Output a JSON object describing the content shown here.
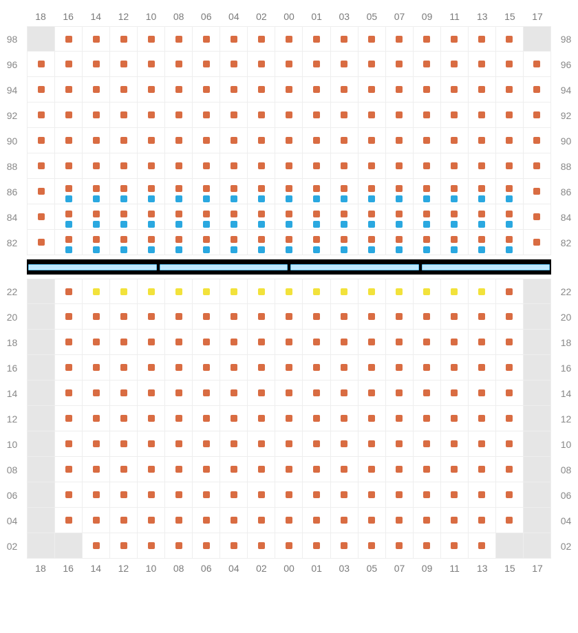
{
  "colors": {
    "seat_default": "#d96c42",
    "seat_blue": "#2aa8e0",
    "seat_yellow": "#f2e23b",
    "blank_bg": "#e6e6e6",
    "cell_bg": "#ffffff",
    "grid_line": "#eeeeee",
    "label_color": "#888888",
    "stage_bg": "#000000",
    "stage_seg_fill": "#bfe8ff",
    "stage_seg_border": "#5cbdf0"
  },
  "columns": [
    "18",
    "16",
    "14",
    "12",
    "10",
    "08",
    "06",
    "04",
    "02",
    "00",
    "01",
    "03",
    "05",
    "07",
    "09",
    "11",
    "13",
    "15",
    "17"
  ],
  "stage_segments": 4,
  "upper": {
    "rows": [
      {
        "label": "98",
        "cells": [
          {
            "t": "blank"
          },
          {
            "t": "s"
          },
          {
            "t": "s"
          },
          {
            "t": "s"
          },
          {
            "t": "s"
          },
          {
            "t": "s"
          },
          {
            "t": "s"
          },
          {
            "t": "s"
          },
          {
            "t": "s"
          },
          {
            "t": "s"
          },
          {
            "t": "s"
          },
          {
            "t": "s"
          },
          {
            "t": "s"
          },
          {
            "t": "s"
          },
          {
            "t": "s"
          },
          {
            "t": "s"
          },
          {
            "t": "s"
          },
          {
            "t": "s"
          },
          {
            "t": "blank"
          }
        ]
      },
      {
        "label": "96",
        "cells": [
          {
            "t": "s"
          },
          {
            "t": "s"
          },
          {
            "t": "s"
          },
          {
            "t": "s"
          },
          {
            "t": "s"
          },
          {
            "t": "s"
          },
          {
            "t": "s"
          },
          {
            "t": "s"
          },
          {
            "t": "s"
          },
          {
            "t": "s"
          },
          {
            "t": "s"
          },
          {
            "t": "s"
          },
          {
            "t": "s"
          },
          {
            "t": "s"
          },
          {
            "t": "s"
          },
          {
            "t": "s"
          },
          {
            "t": "s"
          },
          {
            "t": "s"
          },
          {
            "t": "s"
          }
        ]
      },
      {
        "label": "94",
        "cells": [
          {
            "t": "s"
          },
          {
            "t": "s"
          },
          {
            "t": "s"
          },
          {
            "t": "s"
          },
          {
            "t": "s"
          },
          {
            "t": "s"
          },
          {
            "t": "s"
          },
          {
            "t": "s"
          },
          {
            "t": "s"
          },
          {
            "t": "s"
          },
          {
            "t": "s"
          },
          {
            "t": "s"
          },
          {
            "t": "s"
          },
          {
            "t": "s"
          },
          {
            "t": "s"
          },
          {
            "t": "s"
          },
          {
            "t": "s"
          },
          {
            "t": "s"
          },
          {
            "t": "s"
          }
        ]
      },
      {
        "label": "92",
        "cells": [
          {
            "t": "s"
          },
          {
            "t": "s"
          },
          {
            "t": "s"
          },
          {
            "t": "s"
          },
          {
            "t": "s"
          },
          {
            "t": "s"
          },
          {
            "t": "s"
          },
          {
            "t": "s"
          },
          {
            "t": "s"
          },
          {
            "t": "s"
          },
          {
            "t": "s"
          },
          {
            "t": "s"
          },
          {
            "t": "s"
          },
          {
            "t": "s"
          },
          {
            "t": "s"
          },
          {
            "t": "s"
          },
          {
            "t": "s"
          },
          {
            "t": "s"
          },
          {
            "t": "s"
          }
        ]
      },
      {
        "label": "90",
        "cells": [
          {
            "t": "s"
          },
          {
            "t": "s"
          },
          {
            "t": "s"
          },
          {
            "t": "s"
          },
          {
            "t": "s"
          },
          {
            "t": "s"
          },
          {
            "t": "s"
          },
          {
            "t": "s"
          },
          {
            "t": "s"
          },
          {
            "t": "s"
          },
          {
            "t": "s"
          },
          {
            "t": "s"
          },
          {
            "t": "s"
          },
          {
            "t": "s"
          },
          {
            "t": "s"
          },
          {
            "t": "s"
          },
          {
            "t": "s"
          },
          {
            "t": "s"
          },
          {
            "t": "s"
          }
        ]
      },
      {
        "label": "88",
        "cells": [
          {
            "t": "s"
          },
          {
            "t": "s"
          },
          {
            "t": "s"
          },
          {
            "t": "s"
          },
          {
            "t": "s"
          },
          {
            "t": "s"
          },
          {
            "t": "s"
          },
          {
            "t": "s"
          },
          {
            "t": "s"
          },
          {
            "t": "s"
          },
          {
            "t": "s"
          },
          {
            "t": "s"
          },
          {
            "t": "s"
          },
          {
            "t": "s"
          },
          {
            "t": "s"
          },
          {
            "t": "s"
          },
          {
            "t": "s"
          },
          {
            "t": "s"
          },
          {
            "t": "s"
          }
        ]
      },
      {
        "label": "86",
        "cells": [
          {
            "t": "s"
          },
          {
            "t": "d"
          },
          {
            "t": "d"
          },
          {
            "t": "d"
          },
          {
            "t": "d"
          },
          {
            "t": "d"
          },
          {
            "t": "d"
          },
          {
            "t": "d"
          },
          {
            "t": "d"
          },
          {
            "t": "d"
          },
          {
            "t": "d"
          },
          {
            "t": "d"
          },
          {
            "t": "d"
          },
          {
            "t": "d"
          },
          {
            "t": "d"
          },
          {
            "t": "d"
          },
          {
            "t": "d"
          },
          {
            "t": "d"
          },
          {
            "t": "s"
          }
        ]
      },
      {
        "label": "84",
        "cells": [
          {
            "t": "s"
          },
          {
            "t": "d"
          },
          {
            "t": "d"
          },
          {
            "t": "d"
          },
          {
            "t": "d"
          },
          {
            "t": "d"
          },
          {
            "t": "d"
          },
          {
            "t": "d"
          },
          {
            "t": "d"
          },
          {
            "t": "d"
          },
          {
            "t": "d"
          },
          {
            "t": "d"
          },
          {
            "t": "d"
          },
          {
            "t": "d"
          },
          {
            "t": "d"
          },
          {
            "t": "d"
          },
          {
            "t": "d"
          },
          {
            "t": "d"
          },
          {
            "t": "s"
          }
        ]
      },
      {
        "label": "82",
        "cells": [
          {
            "t": "s"
          },
          {
            "t": "d"
          },
          {
            "t": "d"
          },
          {
            "t": "d"
          },
          {
            "t": "d"
          },
          {
            "t": "d"
          },
          {
            "t": "d"
          },
          {
            "t": "d"
          },
          {
            "t": "d"
          },
          {
            "t": "d"
          },
          {
            "t": "d"
          },
          {
            "t": "d"
          },
          {
            "t": "d"
          },
          {
            "t": "d"
          },
          {
            "t": "d"
          },
          {
            "t": "d"
          },
          {
            "t": "d"
          },
          {
            "t": "d"
          },
          {
            "t": "s"
          }
        ]
      }
    ]
  },
  "lower": {
    "rows": [
      {
        "label": "22",
        "cells": [
          {
            "t": "blank"
          },
          {
            "t": "s"
          },
          {
            "t": "y"
          },
          {
            "t": "y"
          },
          {
            "t": "y"
          },
          {
            "t": "y"
          },
          {
            "t": "y"
          },
          {
            "t": "y"
          },
          {
            "t": "y"
          },
          {
            "t": "y"
          },
          {
            "t": "y"
          },
          {
            "t": "y"
          },
          {
            "t": "y"
          },
          {
            "t": "y"
          },
          {
            "t": "y"
          },
          {
            "t": "y"
          },
          {
            "t": "y"
          },
          {
            "t": "s"
          },
          {
            "t": "blank"
          }
        ]
      },
      {
        "label": "20",
        "cells": [
          {
            "t": "blank"
          },
          {
            "t": "s"
          },
          {
            "t": "s"
          },
          {
            "t": "s"
          },
          {
            "t": "s"
          },
          {
            "t": "s"
          },
          {
            "t": "s"
          },
          {
            "t": "s"
          },
          {
            "t": "s"
          },
          {
            "t": "s"
          },
          {
            "t": "s"
          },
          {
            "t": "s"
          },
          {
            "t": "s"
          },
          {
            "t": "s"
          },
          {
            "t": "s"
          },
          {
            "t": "s"
          },
          {
            "t": "s"
          },
          {
            "t": "s"
          },
          {
            "t": "blank"
          }
        ]
      },
      {
        "label": "18",
        "cells": [
          {
            "t": "blank"
          },
          {
            "t": "s"
          },
          {
            "t": "s"
          },
          {
            "t": "s"
          },
          {
            "t": "s"
          },
          {
            "t": "s"
          },
          {
            "t": "s"
          },
          {
            "t": "s"
          },
          {
            "t": "s"
          },
          {
            "t": "s"
          },
          {
            "t": "s"
          },
          {
            "t": "s"
          },
          {
            "t": "s"
          },
          {
            "t": "s"
          },
          {
            "t": "s"
          },
          {
            "t": "s"
          },
          {
            "t": "s"
          },
          {
            "t": "s"
          },
          {
            "t": "blank"
          }
        ]
      },
      {
        "label": "16",
        "cells": [
          {
            "t": "blank"
          },
          {
            "t": "s"
          },
          {
            "t": "s"
          },
          {
            "t": "s"
          },
          {
            "t": "s"
          },
          {
            "t": "s"
          },
          {
            "t": "s"
          },
          {
            "t": "s"
          },
          {
            "t": "s"
          },
          {
            "t": "s"
          },
          {
            "t": "s"
          },
          {
            "t": "s"
          },
          {
            "t": "s"
          },
          {
            "t": "s"
          },
          {
            "t": "s"
          },
          {
            "t": "s"
          },
          {
            "t": "s"
          },
          {
            "t": "s"
          },
          {
            "t": "blank"
          }
        ]
      },
      {
        "label": "14",
        "cells": [
          {
            "t": "blank"
          },
          {
            "t": "s"
          },
          {
            "t": "s"
          },
          {
            "t": "s"
          },
          {
            "t": "s"
          },
          {
            "t": "s"
          },
          {
            "t": "s"
          },
          {
            "t": "s"
          },
          {
            "t": "s"
          },
          {
            "t": "s"
          },
          {
            "t": "s"
          },
          {
            "t": "s"
          },
          {
            "t": "s"
          },
          {
            "t": "s"
          },
          {
            "t": "s"
          },
          {
            "t": "s"
          },
          {
            "t": "s"
          },
          {
            "t": "s"
          },
          {
            "t": "blank"
          }
        ]
      },
      {
        "label": "12",
        "cells": [
          {
            "t": "blank"
          },
          {
            "t": "s"
          },
          {
            "t": "s"
          },
          {
            "t": "s"
          },
          {
            "t": "s"
          },
          {
            "t": "s"
          },
          {
            "t": "s"
          },
          {
            "t": "s"
          },
          {
            "t": "s"
          },
          {
            "t": "s"
          },
          {
            "t": "s"
          },
          {
            "t": "s"
          },
          {
            "t": "s"
          },
          {
            "t": "s"
          },
          {
            "t": "s"
          },
          {
            "t": "s"
          },
          {
            "t": "s"
          },
          {
            "t": "s"
          },
          {
            "t": "blank"
          }
        ]
      },
      {
        "label": "10",
        "cells": [
          {
            "t": "blank"
          },
          {
            "t": "s"
          },
          {
            "t": "s"
          },
          {
            "t": "s"
          },
          {
            "t": "s"
          },
          {
            "t": "s"
          },
          {
            "t": "s"
          },
          {
            "t": "s"
          },
          {
            "t": "s"
          },
          {
            "t": "s"
          },
          {
            "t": "s"
          },
          {
            "t": "s"
          },
          {
            "t": "s"
          },
          {
            "t": "s"
          },
          {
            "t": "s"
          },
          {
            "t": "s"
          },
          {
            "t": "s"
          },
          {
            "t": "s"
          },
          {
            "t": "blank"
          }
        ]
      },
      {
        "label": "08",
        "cells": [
          {
            "t": "blank"
          },
          {
            "t": "s"
          },
          {
            "t": "s"
          },
          {
            "t": "s"
          },
          {
            "t": "s"
          },
          {
            "t": "s"
          },
          {
            "t": "s"
          },
          {
            "t": "s"
          },
          {
            "t": "s"
          },
          {
            "t": "s"
          },
          {
            "t": "s"
          },
          {
            "t": "s"
          },
          {
            "t": "s"
          },
          {
            "t": "s"
          },
          {
            "t": "s"
          },
          {
            "t": "s"
          },
          {
            "t": "s"
          },
          {
            "t": "s"
          },
          {
            "t": "blank"
          }
        ]
      },
      {
        "label": "06",
        "cells": [
          {
            "t": "blank"
          },
          {
            "t": "s"
          },
          {
            "t": "s"
          },
          {
            "t": "s"
          },
          {
            "t": "s"
          },
          {
            "t": "s"
          },
          {
            "t": "s"
          },
          {
            "t": "s"
          },
          {
            "t": "s"
          },
          {
            "t": "s"
          },
          {
            "t": "s"
          },
          {
            "t": "s"
          },
          {
            "t": "s"
          },
          {
            "t": "s"
          },
          {
            "t": "s"
          },
          {
            "t": "s"
          },
          {
            "t": "s"
          },
          {
            "t": "s"
          },
          {
            "t": "blank"
          }
        ]
      },
      {
        "label": "04",
        "cells": [
          {
            "t": "blank"
          },
          {
            "t": "s"
          },
          {
            "t": "s"
          },
          {
            "t": "s"
          },
          {
            "t": "s"
          },
          {
            "t": "s"
          },
          {
            "t": "s"
          },
          {
            "t": "s"
          },
          {
            "t": "s"
          },
          {
            "t": "s"
          },
          {
            "t": "s"
          },
          {
            "t": "s"
          },
          {
            "t": "s"
          },
          {
            "t": "s"
          },
          {
            "t": "s"
          },
          {
            "t": "s"
          },
          {
            "t": "s"
          },
          {
            "t": "s"
          },
          {
            "t": "blank"
          }
        ]
      },
      {
        "label": "02",
        "cells": [
          {
            "t": "blank"
          },
          {
            "t": "blank"
          },
          {
            "t": "s"
          },
          {
            "t": "s"
          },
          {
            "t": "s"
          },
          {
            "t": "s"
          },
          {
            "t": "s"
          },
          {
            "t": "s"
          },
          {
            "t": "s"
          },
          {
            "t": "s"
          },
          {
            "t": "s"
          },
          {
            "t": "s"
          },
          {
            "t": "s"
          },
          {
            "t": "s"
          },
          {
            "t": "s"
          },
          {
            "t": "s"
          },
          {
            "t": "s"
          },
          {
            "t": "blank"
          },
          {
            "t": "blank"
          }
        ]
      }
    ]
  }
}
